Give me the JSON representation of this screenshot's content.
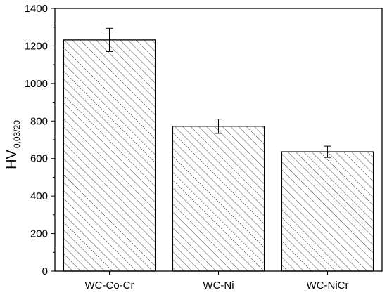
{
  "chart_data": {
    "type": "bar",
    "categories": [
      "WC-Co-Cr",
      "WC-Ni",
      "WC-NiCr"
    ],
    "values": [
      1232,
      772,
      636
    ],
    "errors": [
      62,
      38,
      30
    ],
    "ylabel_main": "HV",
    "ylabel_sub": "0,03/20",
    "xlabel": "",
    "title": "",
    "ylim": [
      0,
      1400
    ],
    "yticks": [
      0,
      200,
      400,
      600,
      800,
      1000,
      1200,
      1400
    ],
    "grid": false,
    "legend": "none",
    "bar_fill": "hatched",
    "colors": {
      "stroke": "#000000",
      "hatch": "#444444",
      "background": "#ffffff"
    }
  }
}
